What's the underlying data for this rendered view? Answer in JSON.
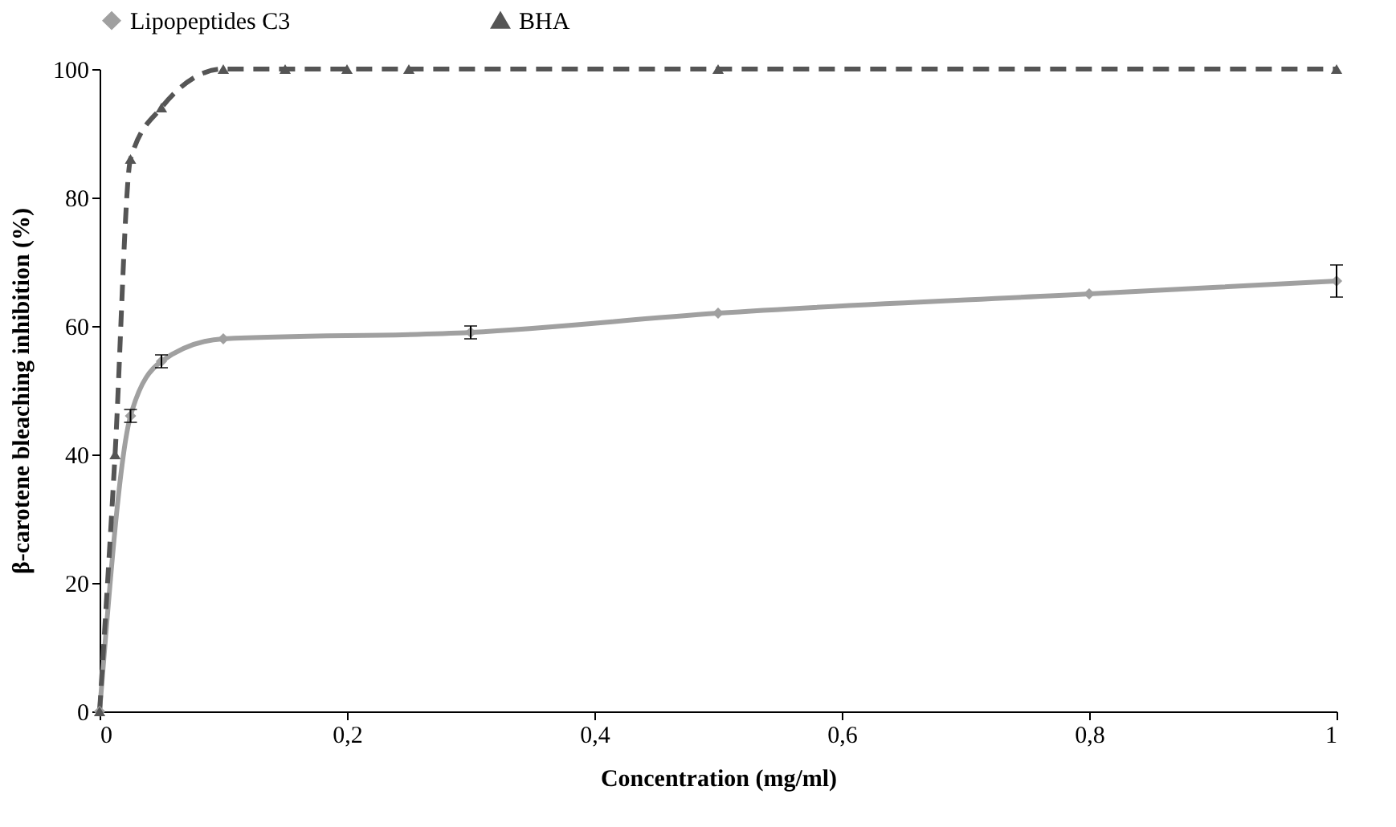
{
  "chart_data": {
    "type": "line",
    "xlabel": "Concentration (mg/ml)",
    "ylabel": "β-carotene bleaching inhibition (%)",
    "xlim": [
      0,
      1
    ],
    "xticks": [
      0,
      {
        "value": 0.2,
        "label": "0,2"
      },
      {
        "value": 0.4,
        "label": "0,4"
      },
      {
        "value": 0.6,
        "label": "0,6"
      },
      {
        "value": 0.8,
        "label": "0,8"
      },
      1
    ],
    "ylim": [
      0,
      100
    ],
    "yticks": [
      0,
      20,
      40,
      60,
      80,
      100
    ],
    "grid": false,
    "legend": "top",
    "series": [
      {
        "name": "Lipopeptides C3",
        "color": "#a0a0a0",
        "marker": "diamond",
        "line_style": "solid",
        "x": [
          0,
          0.025,
          0.05,
          0.1,
          0.3,
          0.5,
          0.8,
          1
        ],
        "values": [
          0,
          46,
          54.5,
          58,
          59,
          62,
          65,
          67
        ],
        "errors": [
          null,
          1,
          1,
          null,
          1,
          null,
          null,
          2.5
        ]
      },
      {
        "name": "BHA",
        "color": "#555555",
        "marker": "triangle",
        "line_style": "dashed",
        "x": [
          0,
          0.0125,
          0.025,
          0.05,
          0.1,
          0.15,
          0.2,
          0.25,
          0.5,
          1
        ],
        "values": [
          0,
          40,
          86,
          94,
          100,
          100,
          100,
          100,
          100,
          100
        ]
      }
    ]
  }
}
